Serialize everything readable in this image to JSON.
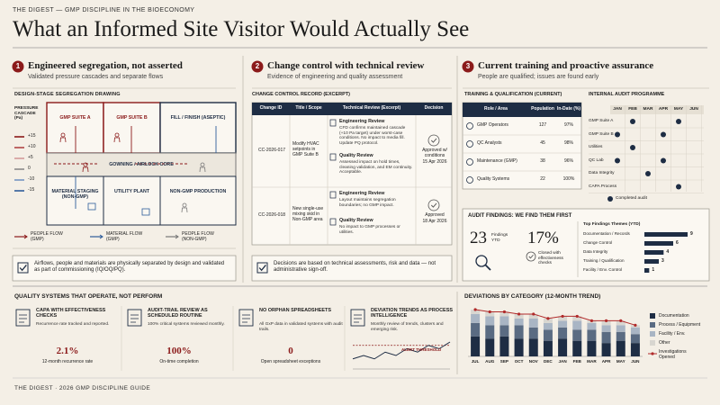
{
  "header": {
    "kicker": "THE DIGEST — GMP DISCIPLINE IN THE BIOECONOMY",
    "title": "What an Informed Site Visitor Would Actually See"
  },
  "segregation": {
    "number": "1",
    "title": "Engineered segregation, not asserted",
    "subtitle": "Validated pressure cascades and separate flows",
    "drawing_title": "DESIGN-STAGE SEGREGATION DRAWING",
    "cascade_title": "PRESSURE CASCADE (Pa)",
    "cascade_levels": [
      "+15",
      "+10",
      "+5",
      "0",
      "-10",
      "-15"
    ],
    "cascade_colors": [
      "#8b1a1a",
      "#b04545",
      "#d39a9a",
      "#8a8a8a",
      "#7595c2",
      "#2f5d9a"
    ],
    "rooms": [
      "GMP SUITE A",
      "GMP SUITE B",
      "FILL / FINISH (ASEPTIC)",
      "GOWNING / AIRLOCK CORE",
      "MATERIAL STAGING (NON-GMP)",
      "UTILITY PLANT",
      "NON-GMP PRODUCTION"
    ],
    "flows": [
      {
        "label": "PEOPLE FLOW (GMP)",
        "color": "#8b1a1a"
      },
      {
        "label": "MATERIAL FLOW (GMP)",
        "color": "#2f5d9a"
      },
      {
        "label": "PEOPLE FLOW (NON-GMP)",
        "color": "#777777"
      }
    ],
    "note": "Airflows, people and materials are physically separated by design and validated as part of commissioning (IQ/OQ/PQ)."
  },
  "change_control": {
    "number": "2",
    "title": "Change control with technical review",
    "subtitle": "Evidence of engineering and quality assessment",
    "record_title": "CHANGE CONTROL RECORD (EXCERPT)",
    "columns": [
      "Change ID",
      "Title / Scope",
      "Technical Review (Excerpt)",
      "Decision"
    ],
    "rows": [
      {
        "id": "CC-2026-017",
        "scope": "Modify HVAC setpoints in GMP Suite B",
        "reviews": [
          {
            "heading": "Engineering Review",
            "text": "CFD confirms maintained cascade (+10 Pa target) under worst-case conditions. No impact to media fill. Update PQ protocol."
          },
          {
            "heading": "Quality Review",
            "text": "Assessed impact on hold times, cleaning validation, and EM continuity. Acceptable."
          }
        ],
        "decision": "Approved w/ conditions",
        "date": "15 Apr 2026"
      },
      {
        "id": "CC-2026-018",
        "scope": "New single-use mixing skid in Non-GMP area",
        "reviews": [
          {
            "heading": "Engineering Review",
            "text": "Layout maintains segregation boundaries; no GMP impact."
          },
          {
            "heading": "Quality Review",
            "text": "No impact to GMP processes or utilities."
          }
        ],
        "decision": "Approved",
        "date": "18 Apr 2026"
      }
    ],
    "note": "Decisions are based on technical assessments, risk and data — not administrative sign-off."
  },
  "training": {
    "number": "3",
    "title": "Current training and proactive assurance",
    "subtitle": "People are qualified; issues are found early",
    "table_title": "TRAINING & QUALIFICATION (CURRENT)",
    "columns": [
      "Role / Area",
      "Population",
      "In-Date (%)"
    ],
    "rows": [
      [
        "GMP Operators",
        "127",
        "97%"
      ],
      [
        "QC Analysts",
        "45",
        "98%"
      ],
      [
        "Maintenance (GMP)",
        "38",
        "96%"
      ],
      [
        "Quality Systems",
        "22",
        "100%"
      ]
    ],
    "audit": {
      "title": "INTERNAL AUDIT PROGRAMME",
      "months": [
        "JAN",
        "FEB",
        "MAR",
        "APR",
        "MAY",
        "JUN"
      ],
      "rows": [
        {
          "area": "GMP Suite A",
          "completed": [
            false,
            true,
            false,
            false,
            true,
            false
          ]
        },
        {
          "area": "GMP Suite B",
          "completed": [
            true,
            false,
            false,
            true,
            false,
            false
          ]
        },
        {
          "area": "Utilities",
          "completed": [
            false,
            true,
            false,
            false,
            false,
            false
          ]
        },
        {
          "area": "QC Lab",
          "completed": [
            true,
            false,
            false,
            true,
            false,
            false
          ]
        },
        {
          "area": "Data Integrity",
          "completed": [
            false,
            false,
            true,
            false,
            false,
            false
          ]
        },
        {
          "area": "CAPA Process",
          "completed": [
            false,
            false,
            false,
            false,
            true,
            false
          ]
        }
      ],
      "legend": "Completed audit"
    },
    "findings": {
      "title": "AUDIT FINDINGS: WE FIND THEM FIRST",
      "count": "23",
      "count_label": "Findings YTD",
      "closed": "17%",
      "closed_label": "Closed with effectiveness checks",
      "themes_title": "Top Findings Themes (YTD)",
      "themes": {
        "categories": [
          "Documentation / Records",
          "Change Control",
          "Data Integrity",
          "Training / Qualification",
          "Facility / Env. Control"
        ],
        "values": [
          9,
          6,
          4,
          3,
          1
        ],
        "color": "#1e2d44"
      }
    }
  },
  "quality": {
    "title": "QUALITY SYSTEMS THAT OPERATE, NOT PERFORM",
    "items": [
      {
        "title": "CAPA WITH EFFECTIVENESS CHECKS",
        "text": "Recurrence rate tracked and reported.",
        "metric": "2.1%",
        "metric_label": "12-month recurrence rate"
      },
      {
        "title": "AUDIT-TRAIL REVIEW AS SCHEDULED ROUTINE",
        "text": "100% critical systems reviewed monthly.",
        "metric": "100%",
        "metric_label": "On-time completion"
      },
      {
        "title": "NO ORPHAN SPREADSHEETS",
        "text": "All GxP data in validated systems with audit trails.",
        "metric": "0",
        "metric_label": "Open spreadsheet exceptions"
      },
      {
        "title": "DEVIATION TRENDS AS PROCESS INTELLIGENCE",
        "text": "Monthly review of trends, clusters and emerging risk.",
        "annotation": "ALERT THRESHOLD",
        "trend": [
          3,
          4,
          3,
          5,
          4,
          6,
          5,
          7,
          6,
          8
        ],
        "threshold": 7
      }
    ]
  },
  "deviations": {
    "title": "DEVIATIONS BY CATEGORY (12-MONTH TREND)",
    "categories": [
      "JUL",
      "AUG",
      "SEP",
      "OCT",
      "NOV",
      "DEC",
      "JAN",
      "FEB",
      "MAR",
      "APR",
      "MAY",
      "JUN"
    ],
    "series": [
      {
        "name": "Documentation",
        "color": "#1e2d44",
        "values": [
          9,
          8,
          9,
          8,
          8,
          7,
          8,
          7,
          7,
          6,
          7,
          6
        ]
      },
      {
        "name": "Process / Equipment",
        "color": "#5a6b82",
        "values": [
          6,
          6,
          5,
          6,
          5,
          5,
          5,
          5,
          5,
          5,
          4,
          4
        ]
      },
      {
        "name": "Facility / Env.",
        "color": "#a9b5c4",
        "values": [
          4,
          4,
          4,
          3,
          4,
          3,
          3,
          4,
          3,
          3,
          3,
          3
        ]
      },
      {
        "name": "Other",
        "color": "#d8d6d0",
        "values": [
          2,
          2,
          2,
          2,
          2,
          2,
          2,
          2,
          1,
          2,
          2,
          1
        ]
      }
    ],
    "line": {
      "name": "Investigations Opened",
      "color": "#b02a2a",
      "values": [
        21,
        20,
        20,
        19,
        19,
        17,
        18,
        18,
        16,
        16,
        16,
        14
      ]
    }
  },
  "footer": "THE DIGEST · 2026 GMP DISCIPLINE GUIDE"
}
